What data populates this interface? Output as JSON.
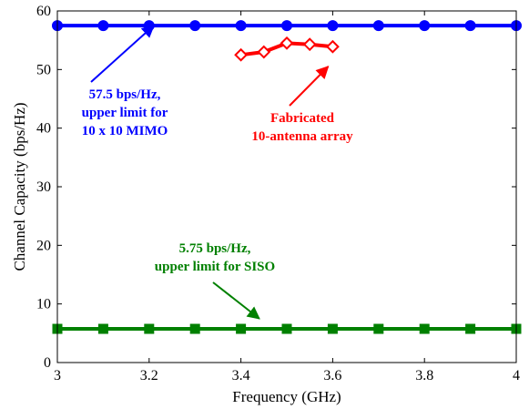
{
  "chart_data": {
    "type": "line",
    "title": "",
    "xlabel": "Frequency (GHz)",
    "ylabel": "Channel Capacity (bps/Hz)",
    "xlim": [
      3,
      4
    ],
    "ylim": [
      0,
      60
    ],
    "xticks": [
      "3",
      "3.2",
      "3.4",
      "3.6",
      "3.8",
      "4"
    ],
    "yticks": [
      "0",
      "10",
      "20",
      "30",
      "40",
      "50",
      "60"
    ],
    "grid": false,
    "legend": "none",
    "series": [
      {
        "key": "mimo",
        "color": "#0000ff",
        "marker": "circle",
        "x": [
          3.0,
          3.1,
          3.2,
          3.3,
          3.4,
          3.5,
          3.6,
          3.7,
          3.8,
          3.9,
          4.0
        ],
        "y": [
          57.5,
          57.5,
          57.5,
          57.5,
          57.5,
          57.5,
          57.5,
          57.5,
          57.5,
          57.5,
          57.5
        ]
      },
      {
        "key": "fabricated",
        "color": "#ff0000",
        "marker": "diamond",
        "x": [
          3.4,
          3.45,
          3.5,
          3.55,
          3.6
        ],
        "y": [
          52.5,
          53.0,
          54.5,
          54.3,
          53.9
        ]
      },
      {
        "key": "siso",
        "color": "#008000",
        "marker": "square",
        "x": [
          3.0,
          3.1,
          3.2,
          3.3,
          3.4,
          3.5,
          3.6,
          3.7,
          3.8,
          3.9,
          4.0
        ],
        "y": [
          5.75,
          5.75,
          5.75,
          5.75,
          5.75,
          5.75,
          5.75,
          5.75,
          5.75,
          5.75,
          5.75
        ]
      }
    ],
    "annotations": [
      {
        "key": "mimo",
        "color": "#0000ff",
        "lines": [
          "57.5 bps/Hz,",
          "upper limit for",
          "10 x 10 MIMO"
        ],
        "arrow_to": [
          3.21,
          57.5
        ]
      },
      {
        "key": "fabricated",
        "color": "#ff0000",
        "lines": [
          "Fabricated",
          "10-antenna array"
        ],
        "arrow_to": [
          3.59,
          50.5
        ]
      },
      {
        "key": "siso",
        "color": "#008000",
        "lines": [
          "5.75 bps/Hz,",
          "upper limit for SISO"
        ],
        "arrow_to": [
          3.44,
          7.5
        ]
      }
    ]
  }
}
